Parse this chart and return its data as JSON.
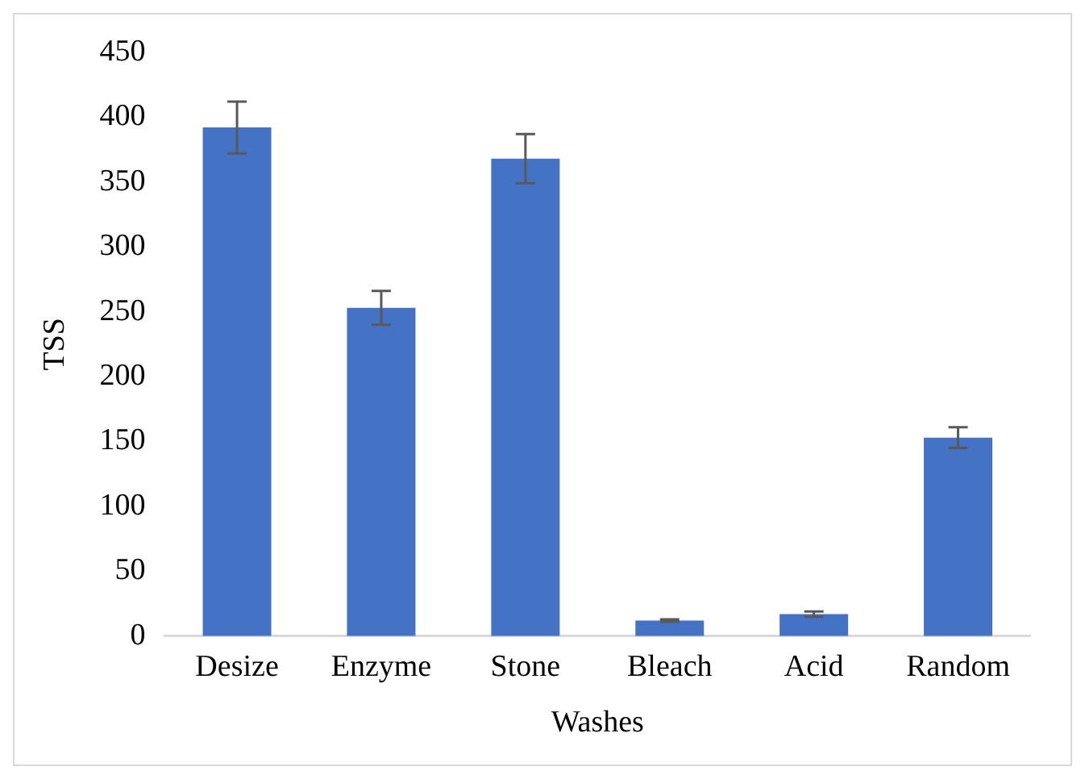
{
  "chart_data": {
    "type": "bar",
    "xlabel": "Washes",
    "ylabel": "TSS",
    "categories": [
      "Desize",
      "Enzyme",
      "Stone",
      "Bleach",
      "Acid",
      "Random"
    ],
    "values": [
      392,
      253,
      368,
      12,
      17,
      153
    ],
    "errors": [
      20,
      13,
      19,
      1,
      2,
      8
    ],
    "color": "#4472c4",
    "ylim": [
      0,
      450
    ],
    "yticks": [
      0,
      50,
      100,
      150,
      200,
      250,
      300,
      350,
      400,
      450
    ],
    "grid": false,
    "legend": false
  }
}
